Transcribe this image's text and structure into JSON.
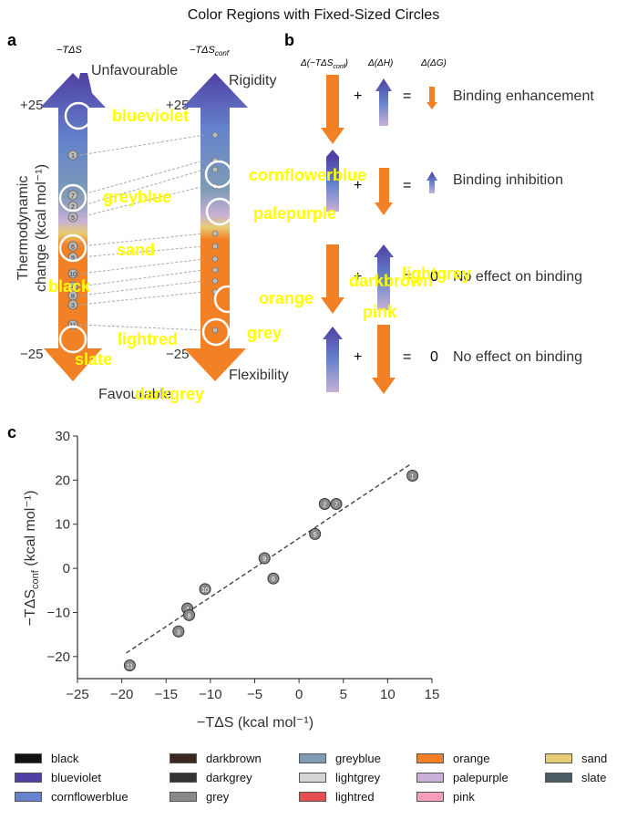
{
  "title": "Color Regions with Fixed-Sized Circles",
  "panel_a": {
    "letter": "a",
    "col1_header": "−TΔS",
    "col2_header": "−TΔS",
    "col2_header_sub": "conf",
    "top_word": "Unfavourable",
    "top_right_word": "Rigidity",
    "bottom_word": "Favourable",
    "bottom_right_word": "Flexibility",
    "plus25_left": "+25",
    "plus25_right": "+25",
    "minus25_left": "−25",
    "minus25_right": "−25",
    "ylabel_line1": "Thermodynamic",
    "ylabel_line2": "change (kcal mol⁻¹)",
    "left_markers": [
      "1",
      "7",
      "2",
      "5",
      "6",
      "9",
      "10",
      "4",
      "8",
      "3",
      "11"
    ]
  },
  "panel_b": {
    "letter": "b",
    "header1": "Δ(−TΔS",
    "header1_sub": "conf",
    "header1_end": ")",
    "header2": "Δ(ΔH)",
    "header3": "Δ(ΔG)",
    "rows": [
      {
        "plus": "+",
        "eq": "=",
        "result": "",
        "label": "Binding enhancement"
      },
      {
        "plus": "+",
        "eq": "=",
        "result": "",
        "label": "Binding inhibition"
      },
      {
        "plus": "+",
        "eq": "=",
        "result": "0",
        "label": "No effect on binding"
      },
      {
        "plus": "+",
        "eq": "=",
        "result": "0",
        "label": "No effect on binding"
      }
    ]
  },
  "overlay_labels": {
    "blueviolet": "blueviolet",
    "greyblue": "greyblue",
    "sand": "sand",
    "black": "black",
    "lightred": "lightred",
    "slate": "slate",
    "darkgrey": "darkgrey",
    "cornflowerblue": "cornflowerblue",
    "palepurple": "palepurple",
    "orange": "orange",
    "grey": "grey",
    "darkbrown": "darkbrown",
    "lightgrey": "lightgrey",
    "pink": "pink",
    "overlay_color": "#ffff00"
  },
  "panel_c": {
    "letter": "c",
    "chart_data": {
      "type": "scatter",
      "xlabel": "−TΔS (kcal mol⁻¹)",
      "ylabel": "−TΔS",
      "ylabel_sub": "conf",
      "ylabel_end": " (kcal mol⁻¹)",
      "xlim": [
        -25,
        15
      ],
      "ylim": [
        -25,
        30
      ],
      "xticks": [
        -25,
        -20,
        -15,
        -10,
        -5,
        0,
        5,
        10,
        15
      ],
      "yticks": [
        -20,
        -10,
        0,
        10,
        20,
        30
      ],
      "xtick_labels": [
        "−25",
        "−20",
        "−15",
        "−10",
        "−5",
        "0",
        "5",
        "10",
        "15"
      ],
      "ytick_labels": [
        "−20",
        "−10",
        "0",
        "10",
        "20",
        "30"
      ],
      "points": [
        {
          "label": "1",
          "x": 12.8,
          "y": 21.0
        },
        {
          "label": "2",
          "x": 2.9,
          "y": 14.6
        },
        {
          "label": "7",
          "x": 4.2,
          "y": 14.6
        },
        {
          "label": "5",
          "x": 1.8,
          "y": 7.8
        },
        {
          "label": "9",
          "x": -3.9,
          "y": 2.3
        },
        {
          "label": "6",
          "x": -2.9,
          "y": -2.3
        },
        {
          "label": "10",
          "x": -10.6,
          "y": -4.7
        },
        {
          "label": "4",
          "x": -12.6,
          "y": -9.1
        },
        {
          "label": "8",
          "x": -12.4,
          "y": -10.6
        },
        {
          "label": "3",
          "x": -13.6,
          "y": -14.3
        },
        {
          "label": "11",
          "x": -19.1,
          "y": -22.0
        }
      ],
      "trend": {
        "x": [
          -19.5,
          12.5
        ],
        "y": [
          -19.2,
          23.5
        ]
      },
      "grid": false
    }
  },
  "legend": {
    "items": [
      {
        "label": "black",
        "color": "#111111"
      },
      {
        "label": "darkbrown",
        "color": "#3b2620"
      },
      {
        "label": "greyblue",
        "color": "#7f9bb6"
      },
      {
        "label": "orange",
        "color": "#f28024"
      },
      {
        "label": "sand",
        "color": "#e7cd74"
      },
      {
        "label": "blueviolet",
        "color": "#5040a3"
      },
      {
        "label": "darkgrey",
        "color": "#333333"
      },
      {
        "label": "lightgrey",
        "color": "#d5d5d5"
      },
      {
        "label": "palepurple",
        "color": "#c8b0d6"
      },
      {
        "label": "slate",
        "color": "#4c5a62"
      },
      {
        "label": "cornflowerblue",
        "color": "#6483cc"
      },
      {
        "label": "grey",
        "color": "#888888"
      },
      {
        "label": "lightred",
        "color": "#e25050"
      },
      {
        "label": "pink",
        "color": "#f59ebc"
      }
    ]
  }
}
